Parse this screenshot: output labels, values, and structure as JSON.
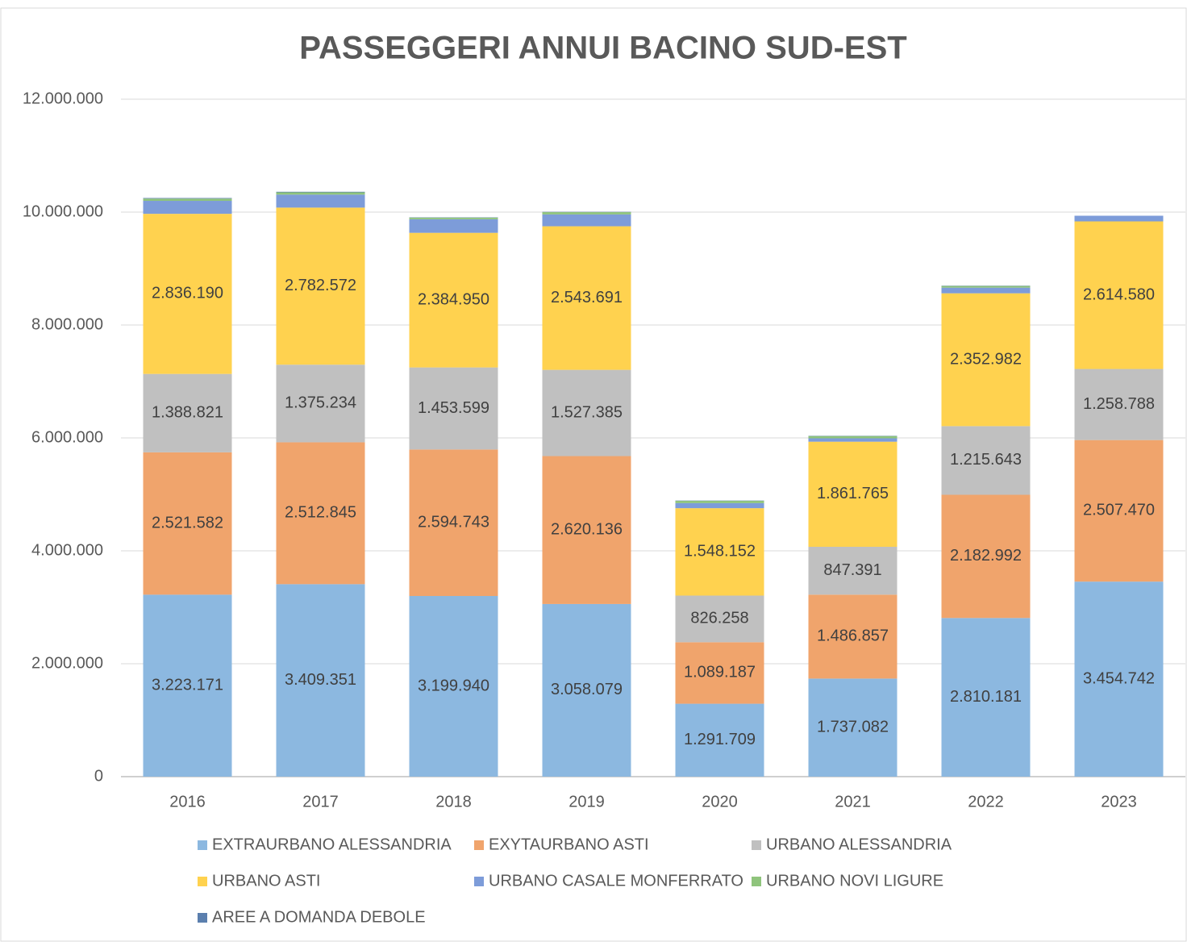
{
  "chart_data": {
    "type": "bar",
    "stacked": true,
    "title": "PASSEGGERI ANNUI BACINO SUD-EST",
    "categories": [
      "2016",
      "2017",
      "2018",
      "2019",
      "2020",
      "2021",
      "2022",
      "2023"
    ],
    "series": [
      {
        "name": "EXTRAURBANO ALESSANDRIA",
        "color": "#8cb8e0",
        "values": [
          3223171,
          3409351,
          3199940,
          3058079,
          1291709,
          1737082,
          2810181,
          3454742
        ],
        "value_labels": [
          "3.223.171",
          "3.409.351",
          "3.199.940",
          "3.058.079",
          "1.291.709",
          "1.737.082",
          "2.810.181",
          "3.454.742"
        ]
      },
      {
        "name": "EXYTAURBANO ASTI",
        "color": "#f0a46c",
        "values": [
          2521582,
          2512845,
          2594743,
          2620136,
          1089187,
          1486857,
          2182992,
          2507470
        ],
        "value_labels": [
          "2.521.582",
          "2.512.845",
          "2.594.743",
          "2.620.136",
          "1.089.187",
          "1.486.857",
          "2.182.992",
          "2.507.470"
        ]
      },
      {
        "name": "URBANO ALESSANDRIA",
        "color": "#c0c0c0",
        "values": [
          1388821,
          1375234,
          1453599,
          1527385,
          826258,
          847391,
          1215643,
          1258788
        ],
        "value_labels": [
          "1.388.821",
          "1.375.234",
          "1.453.599",
          "1.527.385",
          "826.258",
          "847.391",
          "1.215.643",
          "1.258.788"
        ]
      },
      {
        "name": "URBANO ASTI",
        "color": "#ffd24f",
        "values": [
          2836190,
          2782572,
          2384950,
          2543691,
          1548152,
          1861765,
          2352982,
          2614580
        ],
        "value_labels": [
          "2.836.190",
          "2.782.572",
          "2.384.950",
          "2.543.691",
          "1.548.152",
          "1.861.765",
          "2.352.982",
          "2.614.580"
        ]
      },
      {
        "name": "URBANO CASALE MONFERRATO",
        "color": "#7d9cd9",
        "values": [
          230000,
          230000,
          240000,
          210000,
          90000,
          60000,
          100000,
          100000
        ]
      },
      {
        "name": "URBANO NOVI LIGURE",
        "color": "#8fc47c",
        "values": [
          40000,
          40000,
          30000,
          40000,
          40000,
          40000,
          30000,
          0
        ]
      },
      {
        "name": "AREE A DOMANDA DEBOLE",
        "color": "#5b7fae",
        "values": [
          10000,
          10000,
          5000,
          5000,
          5000,
          5000,
          5000,
          0
        ]
      }
    ],
    "ylim": [
      0,
      12000000
    ],
    "yticks": [
      0,
      {
        "value": 2000000,
        "label": "2.000.000"
      },
      {
        "value": 4000000,
        "label": "4.000.000"
      },
      {
        "value": 6000000,
        "label": "6.000.000"
      },
      {
        "value": 8000000,
        "label": "8.000.000"
      },
      {
        "value": 10000000,
        "label": "10.000.000"
      },
      {
        "value": 12000000,
        "label": "12.000.000"
      }
    ],
    "grid": true,
    "legend": "bottom"
  }
}
